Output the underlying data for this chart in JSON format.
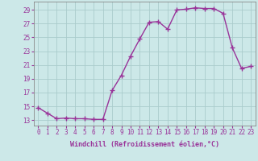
{
  "x": [
    0,
    1,
    2,
    3,
    4,
    5,
    6,
    7,
    8,
    9,
    10,
    11,
    12,
    13,
    14,
    15,
    16,
    17,
    18,
    19,
    20,
    21,
    22,
    23
  ],
  "y": [
    14.8,
    14.0,
    13.2,
    13.3,
    13.2,
    13.2,
    13.1,
    13.1,
    17.3,
    19.5,
    22.3,
    24.8,
    27.2,
    27.3,
    26.2,
    29.0,
    29.1,
    29.3,
    29.2,
    29.2,
    28.5,
    23.5,
    20.5,
    20.8
  ],
  "line_color": "#993399",
  "marker": "+",
  "markersize": 4,
  "linewidth": 1.0,
  "background_color": "#cce8e8",
  "grid_color": "#aacccc",
  "xlabel": "Windchill (Refroidissement éolien,°C)",
  "xlabel_color": "#993399",
  "ytick_labels": [
    "13",
    "15",
    "17",
    "19",
    "21",
    "23",
    "25",
    "27",
    "29"
  ],
  "ytick_values": [
    13,
    15,
    17,
    19,
    21,
    23,
    25,
    27,
    29
  ],
  "xlim": [
    -0.5,
    23.5
  ],
  "ylim": [
    12.2,
    30.2
  ],
  "tick_color": "#993399",
  "xlabel_fontsize": 6.0,
  "tick_fontsize": 5.5
}
